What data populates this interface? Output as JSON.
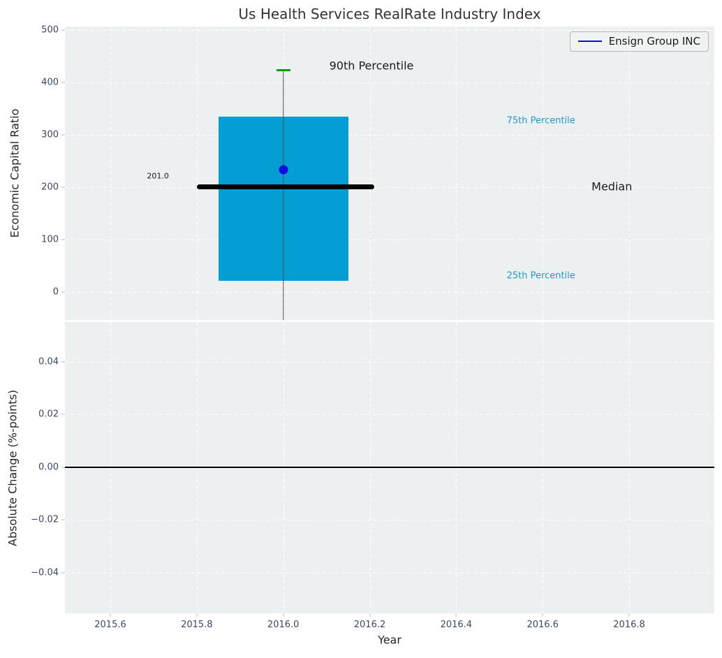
{
  "title": "Us Health Services RealRate Industry Index",
  "legend": {
    "label": "Ensign Group INC"
  },
  "colors": {
    "axes_background": "#ecf0f1",
    "grid": "#ffffff",
    "tick_label": "#3a4766",
    "title": "#333333",
    "box_fill": "#059ed3",
    "whisker": "#4d4d4d",
    "cap_90th": "#0c9b0c",
    "median": "#000000",
    "series_blue": "#0d0de0",
    "percentile_text": "#1f9bca",
    "annotation_dark": "#1a1a1a",
    "zero_line": "#000000"
  },
  "chart_data": [
    {
      "type": "boxplot",
      "title": "Us Health Services RealRate Industry Index",
      "ylabel": "Economic Capital Ratio",
      "xlim": [
        2015.495,
        2016.997
      ],
      "ylim": [
        -53.5,
        507
      ],
      "grid": true,
      "yticks": [
        {
          "v": 0,
          "label": "0"
        },
        {
          "v": 100,
          "label": "100"
        },
        {
          "v": 200,
          "label": "200"
        },
        {
          "v": 300,
          "label": "300"
        },
        {
          "v": 400,
          "label": "400"
        },
        {
          "v": 500,
          "label": "500"
        }
      ],
      "xticks": [
        {
          "v": 2015.6,
          "label": "2015.6"
        },
        {
          "v": 2015.8,
          "label": "2015.8"
        },
        {
          "v": 2016.0,
          "label": "2016.0"
        },
        {
          "v": 2016.2,
          "label": "2016.2"
        },
        {
          "v": 2016.4,
          "label": "2016.4"
        },
        {
          "v": 2016.6,
          "label": "2016.6"
        },
        {
          "v": 2016.8,
          "label": "2016.8"
        }
      ],
      "show_xtick_labels": false,
      "box": {
        "x_center": 2016.0,
        "p90": 423,
        "p75": 335,
        "median": 201.0,
        "p25": 21,
        "whisker_low_clipped_below_axis": true,
        "box_x_range": [
          2015.85,
          2016.15
        ],
        "median_x_range": [
          2015.8,
          2016.21
        ],
        "cap_x_range": [
          2015.984,
          2016.016
        ]
      },
      "point": {
        "name": "Ensign Group INC",
        "x": 2016.0,
        "y": 233
      },
      "legend": {
        "label": "Ensign Group INC",
        "position": "upper right"
      },
      "annotations": [
        {
          "text": "90th Percentile",
          "x": 2016.204,
          "y": 432,
          "color": "#1a1a1a",
          "size": 16
        },
        {
          "text": "201.0",
          "x": 2015.71,
          "y": 221,
          "color": "#1a1a1a",
          "size": 11
        },
        {
          "text": "75th Percentile",
          "x": 2016.596,
          "y": 327,
          "color": "#1f9bca",
          "size": 13
        },
        {
          "text": "Median",
          "x": 2016.76,
          "y": 201,
          "color": "#1a1a1a",
          "size": 16
        },
        {
          "text": "25th Percentile",
          "x": 2016.596,
          "y": 31,
          "color": "#1f9bca",
          "size": 13
        }
      ]
    },
    {
      "type": "line",
      "ylabel": "Absolute Change (%-points)",
      "xlabel": "Year",
      "xlim": [
        2015.495,
        2016.997
      ],
      "ylim": [
        -0.0554,
        0.0551
      ],
      "grid": true,
      "zero_line": true,
      "series": [],
      "yticks": [
        {
          "v": 0.04,
          "label": "0.04"
        },
        {
          "v": 0.02,
          "label": "0.02"
        },
        {
          "v": 0.0,
          "label": "0.00"
        },
        {
          "v": -0.02,
          "label": "−0.02"
        },
        {
          "v": -0.04,
          "label": "−0.04"
        }
      ],
      "xticks": [
        {
          "v": 2015.6,
          "label": "2015.6"
        },
        {
          "v": 2015.8,
          "label": "2015.8"
        },
        {
          "v": 2016.0,
          "label": "2016.0"
        },
        {
          "v": 2016.2,
          "label": "2016.2"
        },
        {
          "v": 2016.4,
          "label": "2016.4"
        },
        {
          "v": 2016.6,
          "label": "2016.6"
        },
        {
          "v": 2016.8,
          "label": "2016.8"
        }
      ],
      "show_xtick_labels": true
    }
  ]
}
